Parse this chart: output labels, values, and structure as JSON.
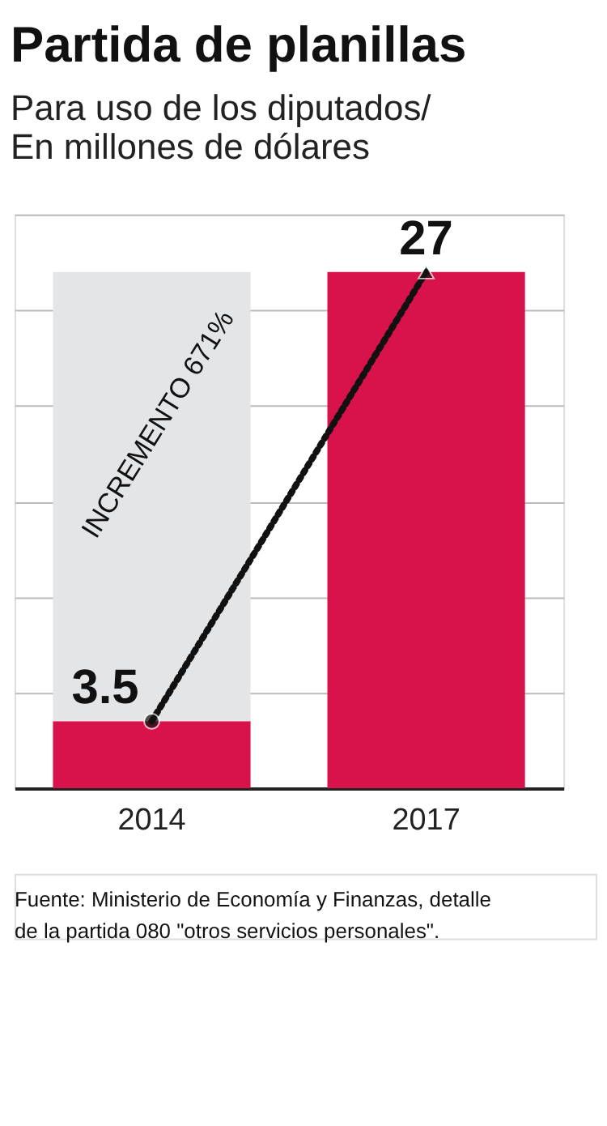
{
  "chart_data": {
    "type": "bar",
    "title": "Partida de planillas",
    "subtitle": "Para uso de los diputados/ En millones de dólares",
    "categories": [
      "2014",
      "2017"
    ],
    "stacked": true,
    "series": [
      {
        "color": "#d8134b",
        "values": [
          3.5,
          27
        ],
        "value_labels": [
          "3.5",
          "27"
        ]
      },
      {
        "color": "#e4e5e7",
        "values": [
          23.5,
          null
        ]
      }
    ],
    "ylim": [
      0,
      30
    ],
    "yticks": [
      {
        "value": 0,
        "label": null
      },
      {
        "value": 5,
        "label": null
      },
      {
        "value": 10,
        "label": null
      },
      {
        "value": 15,
        "label": null
      },
      {
        "value": 20,
        "label": null
      },
      {
        "value": 25,
        "label": null
      },
      {
        "value": 30,
        "label": null
      }
    ],
    "tick_labels": "x",
    "grid": "y",
    "legend": false,
    "annotations": [
      "INCREMENTO 671%",
      "Fuente: Ministerio de Economía y Finanzas, detalle de la partida 080 \"otros servicios personales\"."
    ]
  }
}
